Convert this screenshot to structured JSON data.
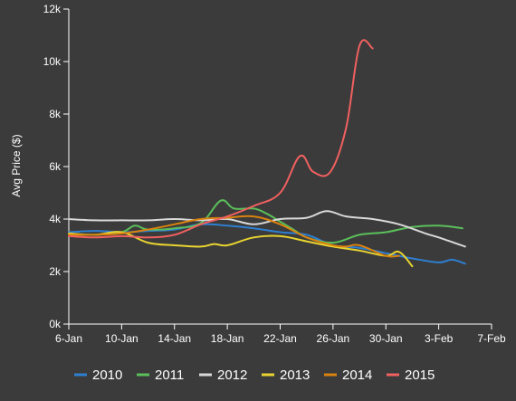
{
  "chart_data": {
    "type": "line",
    "ylabel": "Avg Price ($)",
    "xlabel": "",
    "title": "",
    "x_ticks": [
      "6-Jan",
      "10-Jan",
      "14-Jan",
      "18-Jan",
      "22-Jan",
      "26-Jan",
      "30-Jan",
      "3-Feb",
      "7-Feb"
    ],
    "y_ticks": [
      "0k",
      "2k",
      "4k",
      "6k",
      "8k",
      "10k",
      "12k"
    ],
    "ylim": [
      0,
      12000
    ],
    "xlim_days_from_6jan": [
      0,
      32
    ],
    "grid": "none",
    "legend_position": "bottom",
    "series": [
      {
        "name": "2010",
        "color": "#2f7fd1",
        "points": [
          [
            0,
            3500
          ],
          [
            2,
            3550
          ],
          [
            4,
            3500
          ],
          [
            6,
            3550
          ],
          [
            8,
            3600
          ],
          [
            10,
            3800
          ],
          [
            12,
            3750
          ],
          [
            14,
            3650
          ],
          [
            16,
            3500
          ],
          [
            18,
            3400
          ],
          [
            20,
            3000
          ],
          [
            22,
            2900
          ],
          [
            24,
            2700
          ],
          [
            26,
            2500
          ],
          [
            28,
            2350
          ],
          [
            29,
            2450
          ],
          [
            30,
            2300
          ]
        ]
      },
      {
        "name": "2011",
        "color": "#5bbf5b",
        "points": [
          [
            0,
            3450
          ],
          [
            2,
            3400
          ],
          [
            4,
            3500
          ],
          [
            5,
            3750
          ],
          [
            6,
            3600
          ],
          [
            8,
            3650
          ],
          [
            10,
            3850
          ],
          [
            11.5,
            4700
          ],
          [
            12.5,
            4400
          ],
          [
            14,
            4400
          ],
          [
            15,
            4200
          ],
          [
            16,
            3900
          ],
          [
            17,
            3600
          ],
          [
            18,
            3300
          ],
          [
            20,
            3100
          ],
          [
            22,
            3400
          ],
          [
            24,
            3500
          ],
          [
            26,
            3700
          ],
          [
            28,
            3750
          ],
          [
            29.8,
            3650
          ]
        ]
      },
      {
        "name": "2012",
        "color": "#d9d9d9",
        "points": [
          [
            0,
            4000
          ],
          [
            2,
            3950
          ],
          [
            4,
            3950
          ],
          [
            6,
            3950
          ],
          [
            8,
            4000
          ],
          [
            10,
            3950
          ],
          [
            12,
            4000
          ],
          [
            14,
            3800
          ],
          [
            16,
            4000
          ],
          [
            18,
            4050
          ],
          [
            19.5,
            4300
          ],
          [
            21,
            4100
          ],
          [
            23,
            4000
          ],
          [
            25,
            3800
          ],
          [
            27,
            3450
          ],
          [
            28,
            3300
          ],
          [
            30,
            2950
          ]
        ]
      },
      {
        "name": "2013",
        "color": "#e8d431",
        "points": [
          [
            0,
            3450
          ],
          [
            2,
            3400
          ],
          [
            4,
            3500
          ],
          [
            6,
            3100
          ],
          [
            8,
            3000
          ],
          [
            10,
            2950
          ],
          [
            11,
            3050
          ],
          [
            12,
            3000
          ],
          [
            14,
            3300
          ],
          [
            16,
            3350
          ],
          [
            18,
            3150
          ],
          [
            20,
            2950
          ],
          [
            22,
            2800
          ],
          [
            24,
            2600
          ],
          [
            25,
            2750
          ],
          [
            26,
            2200
          ]
        ]
      },
      {
        "name": "2014",
        "color": "#d9820f",
        "points": [
          [
            0,
            3400
          ],
          [
            2,
            3400
          ],
          [
            4,
            3450
          ],
          [
            6,
            3600
          ],
          [
            8,
            3800
          ],
          [
            10,
            4000
          ],
          [
            12,
            4050
          ],
          [
            14,
            4100
          ],
          [
            16,
            3800
          ],
          [
            18,
            3300
          ],
          [
            20,
            3000
          ],
          [
            21,
            2950
          ],
          [
            22,
            3000
          ],
          [
            24,
            2600
          ],
          [
            25,
            2600
          ]
        ]
      },
      {
        "name": "2015",
        "color": "#f06060",
        "points": [
          [
            0,
            3350
          ],
          [
            2,
            3300
          ],
          [
            4,
            3350
          ],
          [
            6,
            3300
          ],
          [
            8,
            3400
          ],
          [
            10,
            3800
          ],
          [
            12,
            4100
          ],
          [
            14,
            4500
          ],
          [
            16,
            5000
          ],
          [
            17.5,
            6400
          ],
          [
            18.5,
            5800
          ],
          [
            19.8,
            5800
          ],
          [
            21,
            7500
          ],
          [
            22,
            10600
          ],
          [
            23,
            10500
          ]
        ]
      }
    ]
  }
}
